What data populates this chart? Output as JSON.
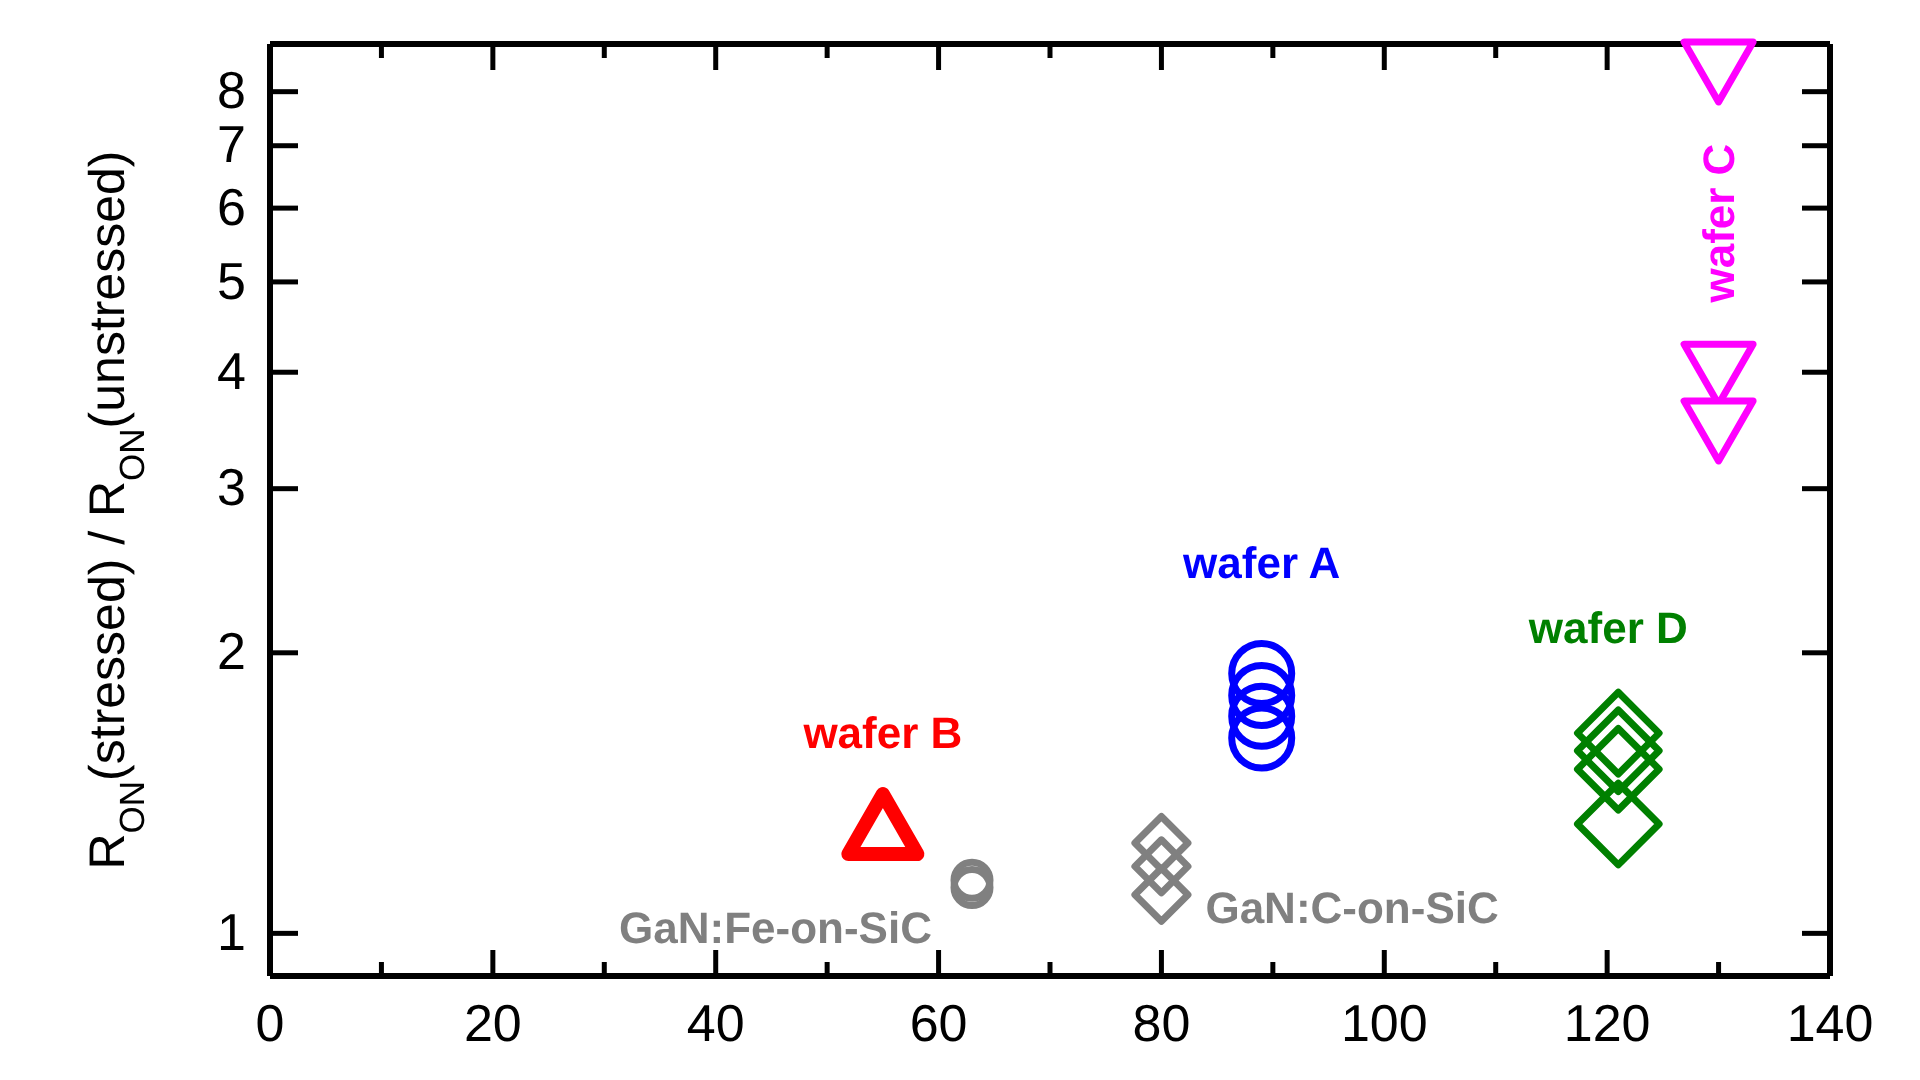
{
  "chart_data": {
    "type": "scatter",
    "ylabel": "R$_{ON}$(stressed) / R$_{ON}$(unstressed)",
    "log": "y",
    "legend": false,
    "grid": false,
    "xlim": [
      0,
      140
    ],
    "xticks": [
      0,
      {
        "value": 10,
        "label": null
      },
      20,
      {
        "value": 30,
        "label": null
      },
      40,
      {
        "value": 50,
        "label": null
      },
      60,
      {
        "value": 70,
        "label": null
      },
      80,
      {
        "value": 90,
        "label": null
      },
      100,
      {
        "value": 110,
        "label": null
      },
      120,
      {
        "value": 130,
        "label": null
      },
      140
    ],
    "ylim": [
      0.9,
      9
    ],
    "yticks": [
      1,
      2,
      3,
      4,
      5,
      6,
      7,
      8
    ],
    "series": [
      {
        "name": "wafer B",
        "color": "#ff0000",
        "marker": "triangle",
        "x": [
          55
        ],
        "values": [
          1.31
        ]
      },
      {
        "name": "GaN:Fe-on-SiC",
        "color": "#808080",
        "marker": "circle",
        "x": [
          63,
          63
        ],
        "values": [
          1.12,
          1.14
        ]
      },
      {
        "name": "GaN:C-on-SiC",
        "color": "#808080",
        "marker": "diamond",
        "x": [
          80,
          80,
          80
        ],
        "values": [
          1.25,
          1.18,
          1.1
        ]
      },
      {
        "name": "wafer A",
        "color": "#0000ff",
        "marker": "circle",
        "x": [
          89,
          89,
          89,
          89
        ],
        "values": [
          1.9,
          1.8,
          1.71,
          1.62
        ]
      },
      {
        "name": "wafer D",
        "color": "#008000",
        "marker": "diamond",
        "x": [
          121,
          121,
          121,
          121
        ],
        "values": [
          1.64,
          1.57,
          1.5,
          1.31
        ]
      },
      {
        "name": "wafer C",
        "color": "#ff00ff",
        "marker": "triangle",
        "x": [
          130,
          130,
          130
        ],
        "values": [
          8.4,
          3.98,
          3.46
        ]
      }
    ]
  }
}
